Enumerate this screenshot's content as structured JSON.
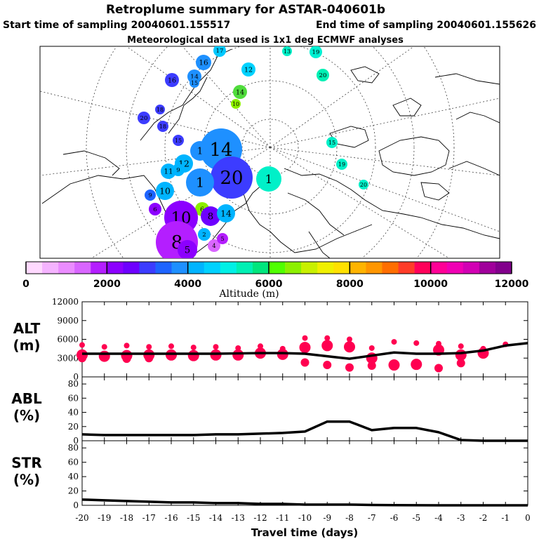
{
  "title": "Retroplume summary for ASTAR-040601b",
  "subtitle_start": "Start time of sampling 20040601.155517",
  "subtitle_end": "End time of sampling 20040601.155626",
  "subtitle_met": "Meteorological data used is 1x1 deg ECMWF analyses",
  "colorbar": {
    "label": "Altitude (m)",
    "ticks": [
      "0",
      "2000",
      "4000",
      "6000",
      "8000",
      "10000",
      "12000"
    ],
    "colors": [
      "#ffd9ff",
      "#f5b3ff",
      "#eb8cff",
      "#d966ff",
      "#b41eff",
      "#8c00ff",
      "#6e00ff",
      "#3c3cff",
      "#1e64ff",
      "#1e90ff",
      "#00b4ff",
      "#00d2ff",
      "#00f0e6",
      "#00f0b4",
      "#00e67d",
      "#50ff00",
      "#8cf000",
      "#c8f000",
      "#f0f000",
      "#ffe100",
      "#ffb400",
      "#ff9600",
      "#ff6e00",
      "#ff3c28",
      "#ff005a",
      "#ff0096",
      "#f000b4",
      "#d200b4",
      "#a0009b",
      "#82008c"
    ]
  },
  "map_labels": [
    {
      "t": "17",
      "c": "#00c8ff"
    },
    {
      "t": "13",
      "c": "#00f0c8"
    },
    {
      "t": "19",
      "c": "#00f0d2"
    },
    {
      "t": "16",
      "c": "#1e90ff"
    },
    {
      "t": "12",
      "c": "#00d2ff"
    },
    {
      "t": "20",
      "c": "#00f0b4"
    },
    {
      "t": "14",
      "c": "#1e90ff"
    },
    {
      "t": "15",
      "c": "#1e90ff"
    },
    {
      "t": "16",
      "c": "#3c3cff"
    },
    {
      "t": "14",
      "c": "#50dc3c"
    },
    {
      "t": "10",
      "c": "#8cf000"
    },
    {
      "t": "20",
      "c": "#3c3cff"
    },
    {
      "t": "18",
      "c": "#3c3cff"
    },
    {
      "t": "18",
      "c": "#3c3cff"
    },
    {
      "t": "15",
      "c": "#3c3cff"
    },
    {
      "t": "14",
      "c": "#1e90ff"
    },
    {
      "t": "1",
      "c": "#1e90ff"
    },
    {
      "t": "12",
      "c": "#00b4ff"
    },
    {
      "t": "11",
      "c": "#00b4ff"
    },
    {
      "t": "9",
      "c": "#00b4ff"
    },
    {
      "t": "20",
      "c": "#3c3cff"
    },
    {
      "t": "1",
      "c": "#00f0c8"
    },
    {
      "t": "1",
      "c": "#1e90ff"
    },
    {
      "t": "10",
      "c": "#00b4ff"
    },
    {
      "t": "15",
      "c": "#00f0c8"
    },
    {
      "t": "19",
      "c": "#00f0c8"
    },
    {
      "t": "20",
      "c": "#00f0c8"
    },
    {
      "t": "6",
      "c": "#8cf000"
    },
    {
      "t": "10",
      "c": "#8c00ff"
    },
    {
      "t": "8",
      "c": "#6e00ff"
    },
    {
      "t": "6",
      "c": "#8c00ff"
    },
    {
      "t": "14",
      "c": "#00b4ff"
    },
    {
      "t": "8",
      "c": "#b41eff"
    },
    {
      "t": "5",
      "c": "#8c00ff"
    },
    {
      "t": "4",
      "c": "#d966ff"
    },
    {
      "t": "5",
      "c": "#b41eff"
    },
    {
      "t": "2",
      "c": "#00b4ff"
    },
    {
      "t": "9",
      "c": "#1e64ff"
    }
  ],
  "chart_data": {
    "type": "line",
    "xlabel": "Travel time (days)",
    "x": [
      -20,
      -19,
      -18,
      -17,
      -16,
      -15,
      -14,
      -13,
      -12,
      -11,
      -10,
      -9,
      -8,
      -7,
      -6,
      -5,
      -4,
      -3,
      -2,
      -1,
      0
    ],
    "x_tick_labels": [
      "-20",
      "-19",
      "-18",
      "-17",
      "-16",
      "-15",
      "-14",
      "-13",
      "-12",
      "-11",
      "-10",
      "-9",
      "-8",
      "-7",
      "-6",
      "-5",
      "-4",
      "-3",
      "-2",
      "-1",
      "0"
    ],
    "panels": [
      {
        "name": "ALT",
        "ylabel_1": "ALT",
        "ylabel_2": "(m)",
        "ylim": [
          0,
          12000
        ],
        "y_ticks": [
          "0",
          "3000",
          "6000",
          "9000",
          "12000"
        ],
        "y_tick_values": [
          0,
          3000,
          6000,
          9000,
          12000
        ],
        "series": [
          {
            "name": "mean altitude",
            "values": [
              3700,
              3700,
              3700,
              3700,
              3700,
              3700,
              3700,
              3750,
              3800,
              3800,
              3700,
              3300,
              2900,
              3400,
              3900,
              3700,
              3700,
              3800,
              4200,
              5000,
              5400
            ]
          }
        ],
        "clusters": [
          {
            "x": -20,
            "y": [
              5100,
              3500,
              3000
            ]
          },
          {
            "x": -19,
            "y": [
              4800,
              3300
            ]
          },
          {
            "x": -18,
            "y": [
              5000,
              3400,
              2900
            ]
          },
          {
            "x": -17,
            "y": [
              4800,
              3500,
              3000
            ]
          },
          {
            "x": -16,
            "y": [
              4900,
              3500
            ]
          },
          {
            "x": -15,
            "y": [
              4700,
              3400
            ]
          },
          {
            "x": -14,
            "y": [
              4800,
              3500
            ]
          },
          {
            "x": -13,
            "y": [
              4600,
              3500
            ]
          },
          {
            "x": -12,
            "y": [
              4900,
              3800
            ]
          },
          {
            "x": -11,
            "y": [
              4500,
              3600
            ]
          },
          {
            "x": -10,
            "y": [
              6200,
              4700,
              2300
            ]
          },
          {
            "x": -9,
            "y": [
              6200,
              5000,
              1900
            ]
          },
          {
            "x": -8,
            "y": [
              6000,
              4800,
              1500
            ]
          },
          {
            "x": -7,
            "y": [
              4600,
              3000,
              1800
            ]
          },
          {
            "x": -6,
            "y": [
              5600,
              1900
            ]
          },
          {
            "x": -5,
            "y": [
              5400,
              2000
            ]
          },
          {
            "x": -4,
            "y": [
              5300,
              4300,
              1400
            ]
          },
          {
            "x": -3,
            "y": [
              4900,
              3500,
              2200
            ]
          },
          {
            "x": -2,
            "y": [
              4500,
              3800
            ]
          },
          {
            "x": -1,
            "y": [
              5200
            ]
          }
        ],
        "marker_color": "#ff0050"
      },
      {
        "name": "ABL",
        "ylabel_1": "ABL",
        "ylabel_2": "(%)",
        "ylim": [
          0,
          90
        ],
        "y_ticks": [
          "0",
          "20",
          "40",
          "60",
          "80"
        ],
        "y_tick_values": [
          0,
          20,
          40,
          60,
          80
        ],
        "series": [
          {
            "name": "fraction in boundary layer",
            "values": [
              9,
              8,
              8,
              8,
              8,
              8,
              9,
              9,
              10,
              11,
              13,
              27,
              27,
              15,
              18,
              18,
              12,
              1,
              0,
              0,
              0
            ]
          }
        ]
      },
      {
        "name": "STR",
        "ylabel_1": "STR",
        "ylabel_2": "(%)",
        "ylim": [
          0,
          90
        ],
        "y_ticks": [
          "0",
          "20",
          "40",
          "60",
          "80"
        ],
        "y_tick_values": [
          0,
          20,
          40,
          60,
          80
        ],
        "series": [
          {
            "name": "fraction in stratosphere",
            "values": [
              8,
              7,
              6,
              5,
              4,
              4,
              3,
              3,
              2,
              2,
              1,
              1,
              1,
              0.5,
              0.3,
              0.1,
              0,
              0,
              0,
              0,
              0
            ]
          }
        ]
      }
    ]
  }
}
